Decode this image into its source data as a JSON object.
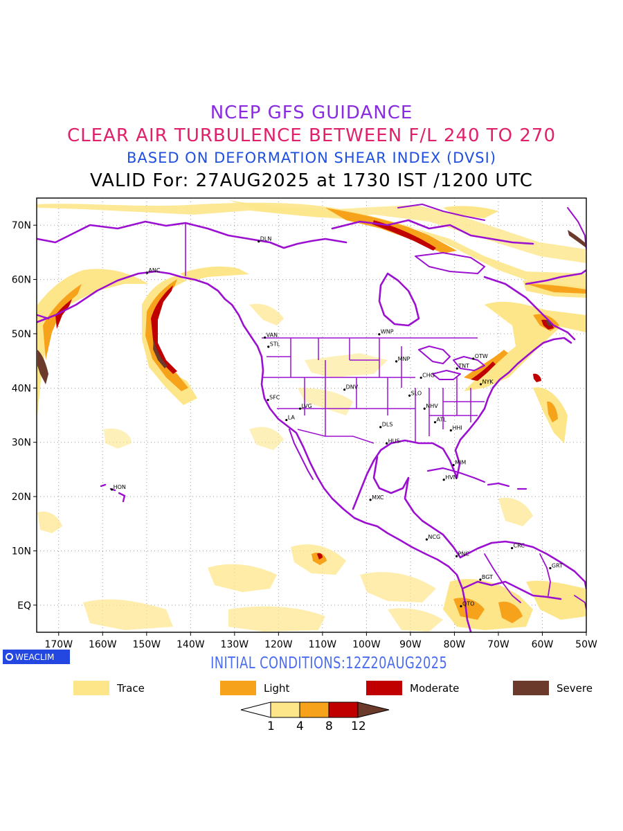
{
  "titles": {
    "line1": "NCEP GFS GUIDANCE",
    "line2": "CLEAR AIR TURBULENCE BETWEEN F/L 240 TO 270",
    "line3": "BASED ON DEFORMATION SHEAR INDEX (DVSI)",
    "line4": "VALID For: 27AUG2025 at 1730 IST /1200 UTC"
  },
  "map": {
    "lon_range": [
      -175,
      -50
    ],
    "lat_range": [
      -5,
      75
    ],
    "grid": true,
    "lat_labels": [
      "EQ",
      "10N",
      "20N",
      "30N",
      "40N",
      "50N",
      "60N",
      "70N"
    ],
    "lon_labels": [
      "170W",
      "160W",
      "150W",
      "140W",
      "130W",
      "120W",
      "110W",
      "100W",
      "90W",
      "80W",
      "70W",
      "60W",
      "50W"
    ],
    "cities": [
      {
        "code": "ANC",
        "lon": -149.9,
        "lat": 61.2
      },
      {
        "code": "DLN",
        "lon": -124.5,
        "lat": 67.0
      },
      {
        "code": "VAN",
        "lon": -123.1,
        "lat": 49.3
      },
      {
        "code": "STL",
        "lon": -122.3,
        "lat": 47.6
      },
      {
        "code": "WNP",
        "lon": -97.1,
        "lat": 49.9
      },
      {
        "code": "MNP",
        "lon": -93.2,
        "lat": 44.9
      },
      {
        "code": "OTW",
        "lon": -75.7,
        "lat": 45.4
      },
      {
        "code": "TNT",
        "lon": -79.4,
        "lat": 43.6
      },
      {
        "code": "CHG",
        "lon": -87.6,
        "lat": 41.9
      },
      {
        "code": "NYK",
        "lon": -74.0,
        "lat": 40.7
      },
      {
        "code": "DNV",
        "lon": -105.0,
        "lat": 39.7
      },
      {
        "code": "SFC",
        "lon": -122.4,
        "lat": 37.8
      },
      {
        "code": "SLO",
        "lon": -90.2,
        "lat": 38.6
      },
      {
        "code": "LVG",
        "lon": -115.1,
        "lat": 36.2
      },
      {
        "code": "NHV",
        "lon": -86.8,
        "lat": 36.2
      },
      {
        "code": "LA",
        "lon": -118.2,
        "lat": 34.1
      },
      {
        "code": "ATL",
        "lon": -84.4,
        "lat": 33.7
      },
      {
        "code": "DLS",
        "lon": -96.8,
        "lat": 32.8
      },
      {
        "code": "HHI",
        "lon": -80.8,
        "lat": 32.2
      },
      {
        "code": "HUS",
        "lon": -95.4,
        "lat": 29.8
      },
      {
        "code": "MIM",
        "lon": -80.2,
        "lat": 25.8
      },
      {
        "code": "HVN",
        "lon": -82.4,
        "lat": 23.1
      },
      {
        "code": "HON",
        "lon": -157.9,
        "lat": 21.3
      },
      {
        "code": "MXC",
        "lon": -99.1,
        "lat": 19.4
      },
      {
        "code": "NCG",
        "lon": -86.3,
        "lat": 12.1
      },
      {
        "code": "CRC",
        "lon": -66.9,
        "lat": 10.5
      },
      {
        "code": "PNC",
        "lon": -79.5,
        "lat": 9.0
      },
      {
        "code": "GRT",
        "lon": -58.2,
        "lat": 6.8
      },
      {
        "code": "BGT",
        "lon": -74.1,
        "lat": 4.7
      },
      {
        "code": "QTO",
        "lon": -78.5,
        "lat": -0.2
      }
    ]
  },
  "initial_conditions": "INITIAL CONDITIONS:12Z20AUG2025",
  "logo_text": "WEACLIM",
  "legend": [
    {
      "label": "Trace",
      "color": "#fde68a"
    },
    {
      "label": "Light",
      "color": "#f7a21b"
    },
    {
      "label": "Moderate",
      "color": "#c00000"
    },
    {
      "label": "Severe",
      "color": "#6b3a2a"
    }
  ],
  "colorbar": {
    "ticks": [
      "1",
      "4",
      "8",
      "12"
    ],
    "colors": [
      "#ffffff",
      "#fde68a",
      "#f7a21b",
      "#c00000",
      "#6b3a2a"
    ]
  },
  "colors": {
    "coastline": "#9b10d0",
    "trace": "#fde68a",
    "light": "#f7a21b",
    "moderate": "#c00000",
    "severe": "#6b3a2a"
  }
}
